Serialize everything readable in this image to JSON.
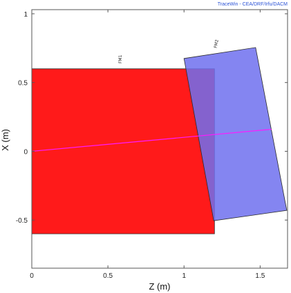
{
  "chart_data": {
    "type": "area",
    "credit": "TraceWin - CEA/DRF/Irfu/DACM",
    "xlabel": "Z (m)",
    "ylabel": "X (m)",
    "xlim": [
      0,
      1.68
    ],
    "ylim": [
      -0.85,
      1.03
    ],
    "xticks": [
      0,
      0.5,
      1,
      1.5
    ],
    "xtick_labels": [
      "0",
      "0.5",
      "1",
      "1.5"
    ],
    "yticks": [
      1,
      0.5,
      0,
      -0.5
    ],
    "ytick_labels": [
      "1",
      "0.5",
      "0",
      "-0.5"
    ],
    "grid": false,
    "elements": [
      {
        "name": "FM1",
        "color": "#ff1a1a",
        "polygon": [
          [
            0,
            0.6
          ],
          [
            1.2,
            0.6
          ],
          [
            1.2,
            -0.6
          ],
          [
            0,
            -0.6
          ]
        ],
        "label_at": [
          0.59,
          0.67
        ]
      },
      {
        "name": "FM2",
        "color": "#6f70ee",
        "polygon": [
          [
            1.0,
            0.675
          ],
          [
            1.47,
            0.755
          ],
          [
            1.675,
            -0.43
          ],
          [
            1.195,
            -0.505
          ]
        ],
        "label_at": [
          1.22,
          0.78
        ]
      }
    ],
    "beam_line": {
      "color": "#ff1aff",
      "points": [
        [
          0,
          0.0
        ],
        [
          1.575,
          0.16
        ]
      ]
    }
  }
}
